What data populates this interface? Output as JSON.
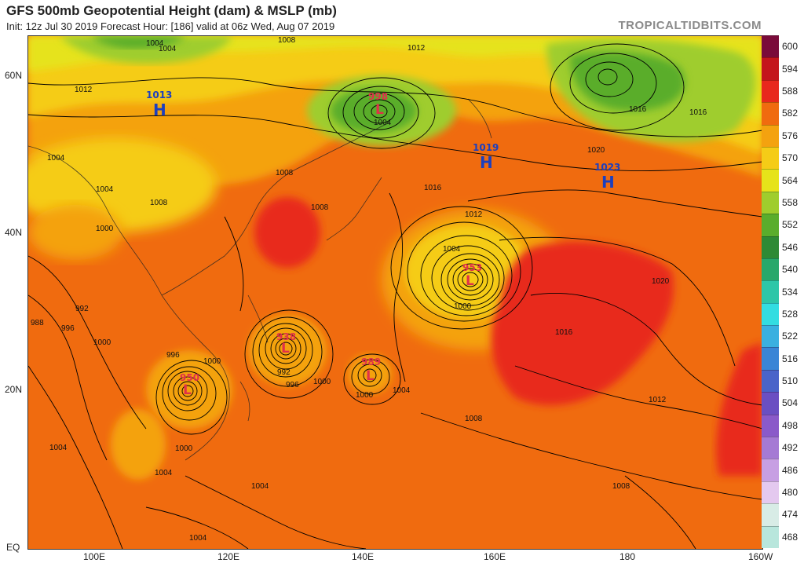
{
  "header": {
    "title": "GFS 500mb Geopotential Height (dam) & MSLP (mb)",
    "subtitle": "Init: 12z Jul 30 2019   Forecast Hour: [186]   valid at 06z Wed, Aug 07 2019",
    "brand": "TROPICALTIDBITS.COM"
  },
  "axes": {
    "lat_labels": [
      "60N",
      "40N",
      "20N",
      "EQ"
    ],
    "lon_labels": [
      "100E",
      "120E",
      "140E",
      "160E",
      "180",
      "160W"
    ]
  },
  "colorbar": {
    "values": [
      "600",
      "594",
      "588",
      "582",
      "576",
      "570",
      "564",
      "558",
      "552",
      "546",
      "540",
      "534",
      "528",
      "522",
      "516",
      "510",
      "504",
      "498",
      "492",
      "486",
      "480",
      "474",
      "468"
    ],
    "colors": [
      "#7a0b3a",
      "#c4161c",
      "#e8291d",
      "#f06b0f",
      "#f4a20f",
      "#f5cc17",
      "#e6e31a",
      "#9fcd2d",
      "#5aad2c",
      "#2e8a35",
      "#28a86b",
      "#2dc6a8",
      "#33dde1",
      "#3ab0e0",
      "#3a85d6",
      "#4a64c9",
      "#6a4fc2",
      "#8a5ac9",
      "#a57ad4",
      "#c79fe3",
      "#e4c9ef",
      "#d8ece6",
      "#b8e6dc"
    ]
  },
  "pressure_centers": [
    {
      "type": "H",
      "value": "1013"
    },
    {
      "type": "L",
      "value": "998"
    },
    {
      "type": "H",
      "value": "1019"
    },
    {
      "type": "H",
      "value": "1023"
    },
    {
      "type": "L",
      "value": "953"
    },
    {
      "type": "L",
      "value": "938"
    },
    {
      "type": "L",
      "value": "989"
    },
    {
      "type": "L",
      "value": "950"
    }
  ],
  "isobar_labels": [
    "1008",
    "1004",
    "1012",
    "1012",
    "1016",
    "1016",
    "1020",
    "1004",
    "1004",
    "1008",
    "1008",
    "1000",
    "992",
    "996",
    "1000",
    "988",
    "1008",
    "1004",
    "1012",
    "1016",
    "1004",
    "1000",
    "996",
    "1000",
    "992",
    "996",
    "1000",
    "1004",
    "1000",
    "1000",
    "1004",
    "1004",
    "1004",
    "1008",
    "1012",
    "1016",
    "1020",
    "1008",
    "1004",
    "1004"
  ]
}
